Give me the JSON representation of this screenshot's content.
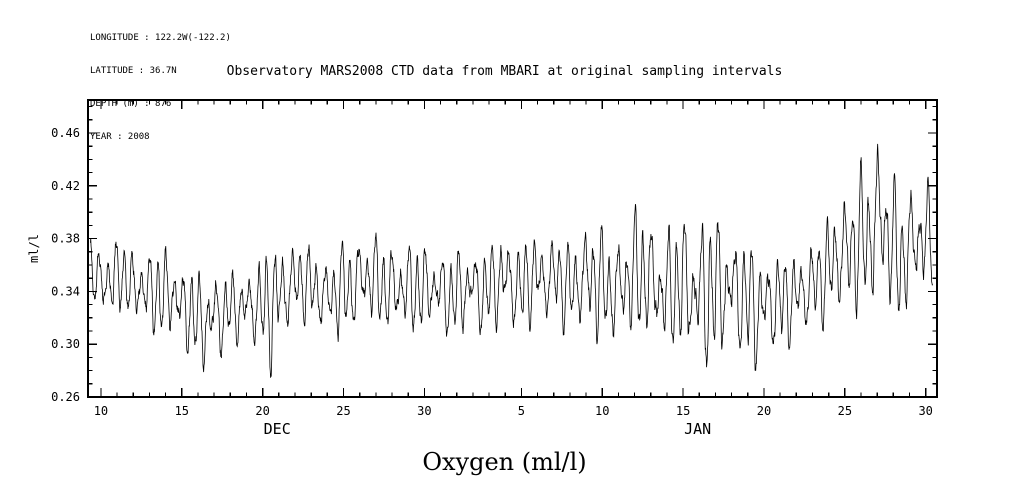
{
  "metadata": {
    "lines": [
      "LONGITUDE : 122.2W(-122.2)",
      "LATITUDE : 36.7N",
      "DEPTH (m) : 876",
      "YEAR : 2008"
    ]
  },
  "chart_data": {
    "type": "line",
    "title": "Observatory MARS2008 CTD data from MBARI at original sampling intervals",
    "bottom_label": "Oxygen (ml/l)",
    "ylabel": "ml/l",
    "xlabel": "",
    "line_color": "#000000",
    "background": "#ffffff",
    "ylim": [
      0.26,
      0.485
    ],
    "yticks": [
      0.26,
      0.3,
      0.34,
      0.38,
      0.42,
      0.46
    ],
    "y_minor_step": 0.01,
    "x_domain": [
      9.2,
      61.7
    ],
    "x_unit": "day-of-series (days since 2008-12-01)",
    "x_minor_step": 1,
    "xticks": [
      {
        "d": 10,
        "label": "10"
      },
      {
        "d": 15,
        "label": "15"
      },
      {
        "d": 20,
        "label": "20"
      },
      {
        "d": 25,
        "label": "25"
      },
      {
        "d": 30,
        "label": "30"
      },
      {
        "d": 36,
        "label": "5"
      },
      {
        "d": 41,
        "label": "10"
      },
      {
        "d": 46,
        "label": "15"
      },
      {
        "d": 51,
        "label": "20"
      },
      {
        "d": 56,
        "label": "25"
      },
      {
        "d": 61,
        "label": "30"
      }
    ],
    "month_labels": [
      {
        "label": "DEC",
        "d": 20.9
      },
      {
        "label": "JAN",
        "d": 46.9
      }
    ],
    "envelope_day_min_max": [
      [
        9.35,
        0.335,
        0.392
      ],
      [
        10,
        0.305,
        0.378
      ],
      [
        10.5,
        0.32,
        0.385
      ],
      [
        11,
        0.315,
        0.38
      ],
      [
        11.5,
        0.325,
        0.385
      ],
      [
        12,
        0.3,
        0.375
      ],
      [
        12.5,
        0.315,
        0.38
      ],
      [
        13,
        0.302,
        0.372
      ],
      [
        13.5,
        0.3,
        0.38
      ],
      [
        14,
        0.295,
        0.375
      ],
      [
        14.5,
        0.3,
        0.383
      ],
      [
        15,
        0.29,
        0.36
      ],
      [
        15.5,
        0.285,
        0.37
      ],
      [
        16,
        0.28,
        0.355
      ],
      [
        16.5,
        0.272,
        0.36
      ],
      [
        17,
        0.28,
        0.365
      ],
      [
        17.5,
        0.285,
        0.355
      ],
      [
        18,
        0.298,
        0.36
      ],
      [
        18.5,
        0.298,
        0.352
      ],
      [
        19,
        0.3,
        0.36
      ],
      [
        19.5,
        0.29,
        0.37
      ],
      [
        20,
        0.28,
        0.375
      ],
      [
        20.5,
        0.276,
        0.38
      ],
      [
        21,
        0.29,
        0.383
      ],
      [
        21.5,
        0.3,
        0.385
      ],
      [
        22,
        0.31,
        0.383
      ],
      [
        22.5,
        0.315,
        0.38
      ],
      [
        23,
        0.31,
        0.378
      ],
      [
        23.5,
        0.305,
        0.375
      ],
      [
        24,
        0.3,
        0.37
      ],
      [
        24.5,
        0.3,
        0.378
      ],
      [
        25,
        0.305,
        0.38
      ],
      [
        25.5,
        0.3,
        0.385
      ],
      [
        26,
        0.31,
        0.388
      ],
      [
        26.5,
        0.315,
        0.39
      ],
      [
        27,
        0.31,
        0.385
      ],
      [
        27.5,
        0.305,
        0.383
      ],
      [
        28,
        0.3,
        0.38
      ],
      [
        28.5,
        0.305,
        0.385
      ],
      [
        29,
        0.3,
        0.38
      ],
      [
        29.5,
        0.305,
        0.382
      ],
      [
        30,
        0.3,
        0.378
      ],
      [
        30.5,
        0.31,
        0.38
      ],
      [
        31,
        0.305,
        0.375
      ],
      [
        31.5,
        0.3,
        0.37
      ],
      [
        32,
        0.3,
        0.375
      ],
      [
        32.5,
        0.305,
        0.378
      ],
      [
        33,
        0.31,
        0.38
      ],
      [
        33.5,
        0.3,
        0.375
      ],
      [
        34,
        0.305,
        0.378
      ],
      [
        34.5,
        0.31,
        0.385
      ],
      [
        35,
        0.3,
        0.4
      ],
      [
        35.5,
        0.305,
        0.385
      ],
      [
        36,
        0.3,
        0.38
      ],
      [
        36.5,
        0.31,
        0.39
      ],
      [
        37,
        0.315,
        0.388
      ],
      [
        37.5,
        0.31,
        0.385
      ],
      [
        38,
        0.315,
        0.39
      ],
      [
        38.5,
        0.31,
        0.385
      ],
      [
        39,
        0.3,
        0.38
      ],
      [
        39.5,
        0.305,
        0.39
      ],
      [
        40,
        0.3,
        0.4
      ],
      [
        40.5,
        0.295,
        0.405
      ],
      [
        41,
        0.3,
        0.39
      ],
      [
        41.5,
        0.295,
        0.385
      ],
      [
        42,
        0.29,
        0.39
      ],
      [
        42.5,
        0.3,
        0.4
      ],
      [
        43,
        0.295,
        0.405
      ],
      [
        43.5,
        0.3,
        0.41
      ],
      [
        44,
        0.295,
        0.4
      ],
      [
        44.5,
        0.29,
        0.395
      ],
      [
        45,
        0.285,
        0.39
      ],
      [
        45.5,
        0.29,
        0.4
      ],
      [
        46,
        0.285,
        0.405
      ],
      [
        46.5,
        0.28,
        0.4
      ],
      [
        47,
        0.275,
        0.4
      ],
      [
        47.5,
        0.27,
        0.41
      ],
      [
        48,
        0.28,
        0.405
      ],
      [
        48.5,
        0.285,
        0.4
      ],
      [
        49,
        0.29,
        0.395
      ],
      [
        49.5,
        0.285,
        0.39
      ],
      [
        50,
        0.28,
        0.385
      ],
      [
        50.5,
        0.275,
        0.38
      ],
      [
        51,
        0.28,
        0.378
      ],
      [
        51.5,
        0.285,
        0.38
      ],
      [
        52,
        0.29,
        0.375
      ],
      [
        52.5,
        0.295,
        0.37
      ],
      [
        53,
        0.3,
        0.375
      ],
      [
        53.5,
        0.3,
        0.38
      ],
      [
        54,
        0.305,
        0.385
      ],
      [
        54.5,
        0.31,
        0.39
      ],
      [
        55,
        0.31,
        0.4
      ],
      [
        55.5,
        0.315,
        0.42
      ],
      [
        56,
        0.31,
        0.425
      ],
      [
        56.5,
        0.315,
        0.43
      ],
      [
        57,
        0.32,
        0.44
      ],
      [
        57.5,
        0.315,
        0.445
      ],
      [
        58,
        0.32,
        0.472
      ],
      [
        58.5,
        0.33,
        0.45
      ],
      [
        59,
        0.31,
        0.43
      ],
      [
        59.5,
        0.305,
        0.42
      ],
      [
        60,
        0.32,
        0.425
      ],
      [
        60.5,
        0.33,
        0.435
      ],
      [
        61,
        0.33,
        0.43
      ],
      [
        61.45,
        0.335,
        0.42
      ]
    ],
    "synthesis": {
      "semidiurnal_period": 0.5175,
      "diurnal_period": 1.0027,
      "samples_per_day": 50
    }
  }
}
